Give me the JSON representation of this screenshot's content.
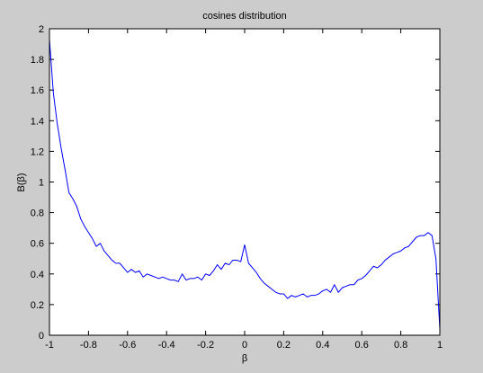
{
  "colors": {
    "figure_background": "#cccccc",
    "axes_background": "#ffffff",
    "line": "#0000ff",
    "axes": "#000000"
  },
  "chart_data": {
    "type": "line",
    "title": "cosines distribution",
    "xlabel": "β",
    "ylabel": "B(β)",
    "xlim": [
      -1,
      1
    ],
    "ylim": [
      0,
      2
    ],
    "grid": false,
    "xticks": [
      -1,
      -0.8,
      -0.6,
      -0.4,
      -0.2,
      0,
      0.2,
      0.4,
      0.6,
      0.8,
      1
    ],
    "xtick_labels": [
      "-1",
      "-0.8",
      "-0.6",
      "-0.4",
      "-0.2",
      "0",
      "0.2",
      "0.4",
      "0.6",
      "0.8",
      "1"
    ],
    "yticks": [
      0,
      0.2,
      0.4,
      0.6,
      0.8,
      1,
      1.2,
      1.4,
      1.6,
      1.8,
      2
    ],
    "ytick_labels": [
      "0",
      "0.2",
      "0.4",
      "0.6",
      "0.8",
      "1",
      "1.2",
      "1.4",
      "1.6",
      "1.8",
      "2"
    ],
    "series": [
      {
        "x": [
          -1.0,
          -0.98,
          -0.96,
          -0.94,
          -0.92,
          -0.9,
          -0.88,
          -0.86,
          -0.84,
          -0.82,
          -0.8,
          -0.78,
          -0.76,
          -0.74,
          -0.72,
          -0.7,
          -0.68,
          -0.66,
          -0.64,
          -0.62,
          -0.6,
          -0.58,
          -0.56,
          -0.54,
          -0.52,
          -0.5,
          -0.48,
          -0.46,
          -0.44,
          -0.42,
          -0.4,
          -0.38,
          -0.36,
          -0.34,
          -0.32,
          -0.3,
          -0.28,
          -0.26,
          -0.24,
          -0.22,
          -0.2,
          -0.18,
          -0.16,
          -0.14,
          -0.12,
          -0.1,
          -0.08,
          -0.06,
          -0.04,
          -0.02,
          0.0,
          0.02,
          0.04,
          0.06,
          0.08,
          0.1,
          0.12,
          0.14,
          0.16,
          0.18,
          0.2,
          0.22,
          0.24,
          0.26,
          0.28,
          0.3,
          0.32,
          0.34,
          0.36,
          0.38,
          0.4,
          0.42,
          0.44,
          0.46,
          0.48,
          0.5,
          0.52,
          0.54,
          0.56,
          0.58,
          0.6,
          0.62,
          0.64,
          0.66,
          0.68,
          0.7,
          0.72,
          0.74,
          0.76,
          0.78,
          0.8,
          0.82,
          0.84,
          0.86,
          0.88,
          0.9,
          0.92,
          0.94,
          0.96,
          0.98,
          1.0
        ],
        "y": [
          1.93,
          1.58,
          1.38,
          1.22,
          1.08,
          0.93,
          0.89,
          0.84,
          0.76,
          0.71,
          0.67,
          0.63,
          0.58,
          0.6,
          0.55,
          0.52,
          0.49,
          0.47,
          0.47,
          0.44,
          0.41,
          0.43,
          0.41,
          0.42,
          0.38,
          0.4,
          0.39,
          0.38,
          0.37,
          0.38,
          0.37,
          0.36,
          0.36,
          0.35,
          0.4,
          0.36,
          0.37,
          0.37,
          0.38,
          0.36,
          0.4,
          0.39,
          0.42,
          0.46,
          0.43,
          0.47,
          0.46,
          0.49,
          0.49,
          0.48,
          0.59,
          0.47,
          0.44,
          0.41,
          0.37,
          0.34,
          0.32,
          0.3,
          0.28,
          0.27,
          0.27,
          0.24,
          0.26,
          0.25,
          0.26,
          0.27,
          0.25,
          0.26,
          0.26,
          0.27,
          0.29,
          0.3,
          0.28,
          0.33,
          0.28,
          0.31,
          0.32,
          0.33,
          0.33,
          0.36,
          0.37,
          0.39,
          0.42,
          0.45,
          0.44,
          0.46,
          0.49,
          0.51,
          0.53,
          0.54,
          0.55,
          0.57,
          0.58,
          0.61,
          0.64,
          0.65,
          0.65,
          0.67,
          0.65,
          0.5,
          0.04
        ]
      }
    ]
  }
}
